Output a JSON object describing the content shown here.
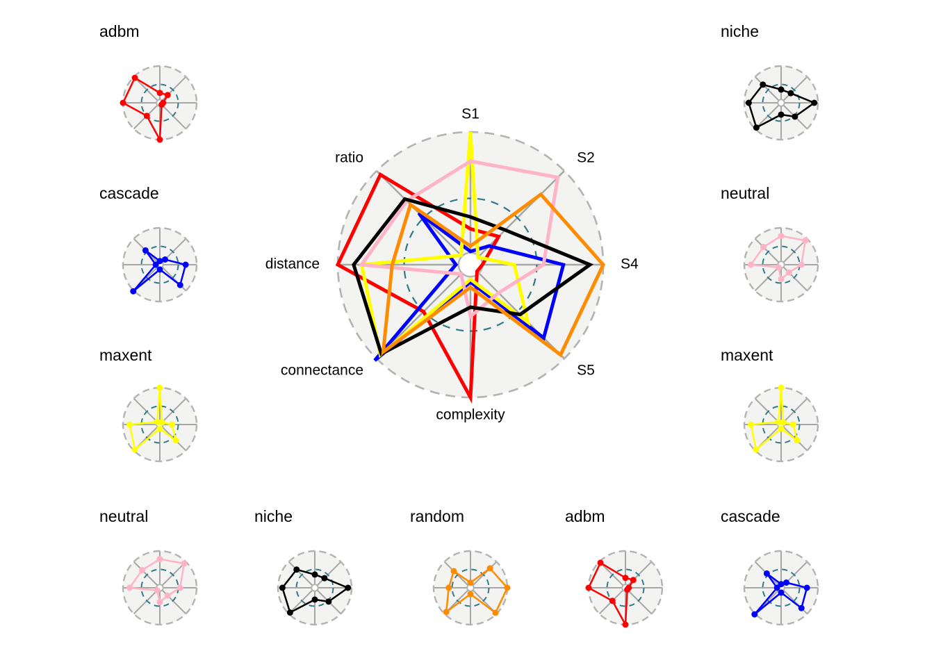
{
  "chart_data": {
    "type": "radar",
    "axes": [
      "S1",
      "S2",
      "S4",
      "S5",
      "complexity",
      "connectance",
      "distance",
      "ratio"
    ],
    "rlim": [
      0,
      1
    ],
    "reference_ring": 0.5,
    "grid": true,
    "colors": {
      "adbm": "#ff0000",
      "cascade": "#0000ff",
      "maxent": "#ffff00",
      "neutral": "#ffb3c6",
      "niche": "#000000",
      "random": "#ff8c00"
    },
    "series": [
      {
        "name": "adbm",
        "values": [
          0.27,
          0.3,
          0.09,
          0.07,
          1.0,
          0.5,
          1.0,
          0.96
        ]
      },
      {
        "name": "cascade",
        "values": [
          0.1,
          0.2,
          0.7,
          0.78,
          0.13,
          1.02,
          0.11,
          0.55
        ]
      },
      {
        "name": "maxent",
        "values": [
          1.0,
          0.08,
          0.33,
          0.61,
          0.11,
          0.96,
          0.82,
          0.1
        ]
      },
      {
        "name": "neutral",
        "values": [
          0.78,
          0.93,
          0.55,
          0.3,
          0.39,
          0.1,
          0.82,
          0.68
        ]
      },
      {
        "name": "niche",
        "values": [
          0.36,
          0.37,
          0.9,
          0.53,
          0.32,
          0.95,
          0.88,
          0.7
        ]
      },
      {
        "name": "random",
        "values": [
          0.14,
          0.75,
          1.0,
          0.96,
          0.17,
          0.93,
          0.59,
          0.64
        ]
      }
    ],
    "small_multiples": {
      "left": [
        "adbm",
        "cascade",
        "maxent"
      ],
      "right": [
        "niche",
        "neutral",
        "maxent"
      ],
      "bottom": [
        "neutral",
        "niche",
        "random",
        "adbm",
        "cascade"
      ]
    }
  }
}
